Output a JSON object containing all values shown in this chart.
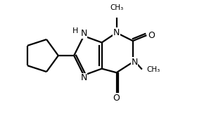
{
  "bg_color": "#ffffff",
  "bond_color": "#000000",
  "lw": 1.6,
  "fs": 8.5,
  "fig_width": 2.8,
  "fig_height": 1.72,
  "dpi": 100,
  "xlim": [
    0.0,
    5.5
  ],
  "ylim": [
    -0.5,
    3.2
  ]
}
